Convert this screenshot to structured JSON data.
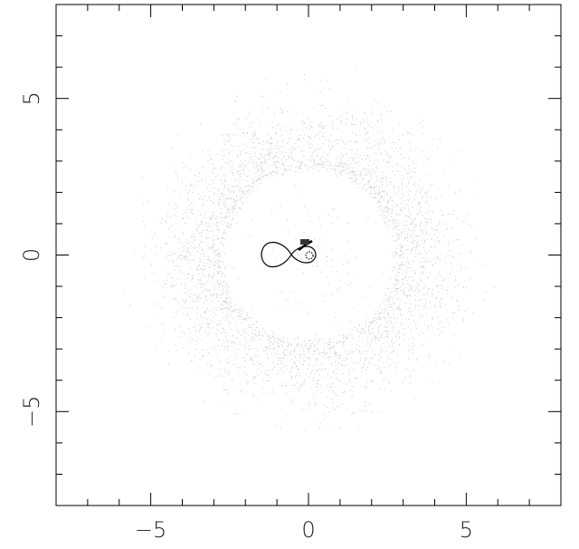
{
  "chart_data": {
    "type": "scatter",
    "xlim": [
      -8,
      8
    ],
    "ylim": [
      -8,
      8
    ],
    "xticks": [
      {
        "value": -5,
        "label": "−5"
      },
      0,
      5
    ],
    "yticks": [
      {
        "value": -5,
        "label": "−5"
      },
      0,
      5
    ],
    "xminor": [
      -7,
      -6,
      -4,
      -3,
      -2,
      -1,
      1,
      2,
      3,
      4,
      6,
      7
    ],
    "yminor": [
      -7,
      -6,
      -4,
      -3,
      -2,
      -1,
      1,
      2,
      3,
      4,
      6,
      7
    ]
  }
}
